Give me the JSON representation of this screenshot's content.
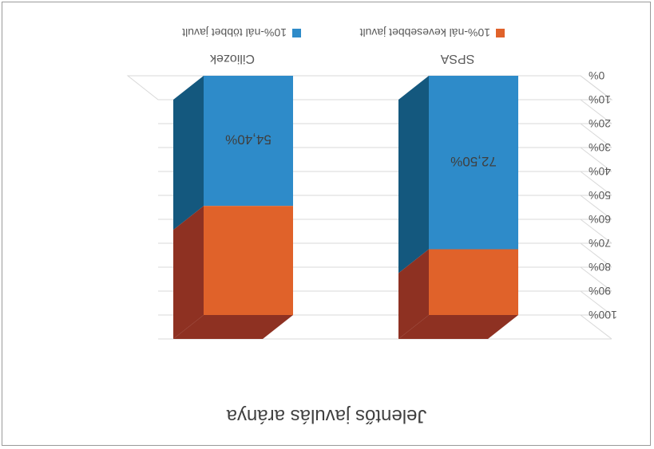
{
  "chart_data": {
    "type": "bar",
    "stacked": true,
    "style": "3d-column",
    "orientation_note": "image is rotated 180 degrees",
    "title": "Jelentős javulás aránya",
    "categories": [
      "SPSA",
      "Ciliozek"
    ],
    "series": [
      {
        "name": "10%-nál többet javult",
        "color": "#2e8bc9",
        "side_color": "#14587e",
        "values": [
          72.5,
          54.4
        ],
        "labels": [
          "72,50%",
          "54,40%"
        ]
      },
      {
        "name": "10%-nál kevesebbet javult",
        "color": "#e0622a",
        "side_color": "#8e3122",
        "values": [
          27.5,
          45.6
        ],
        "labels": [
          "",
          ""
        ]
      }
    ],
    "ylim": [
      0,
      100
    ],
    "y_ticks": [
      "0%",
      "10%",
      "20%",
      "30%",
      "40%",
      "50%",
      "60%",
      "70%",
      "80%",
      "90%",
      "100%"
    ],
    "grid": true,
    "legend_position": "top"
  }
}
